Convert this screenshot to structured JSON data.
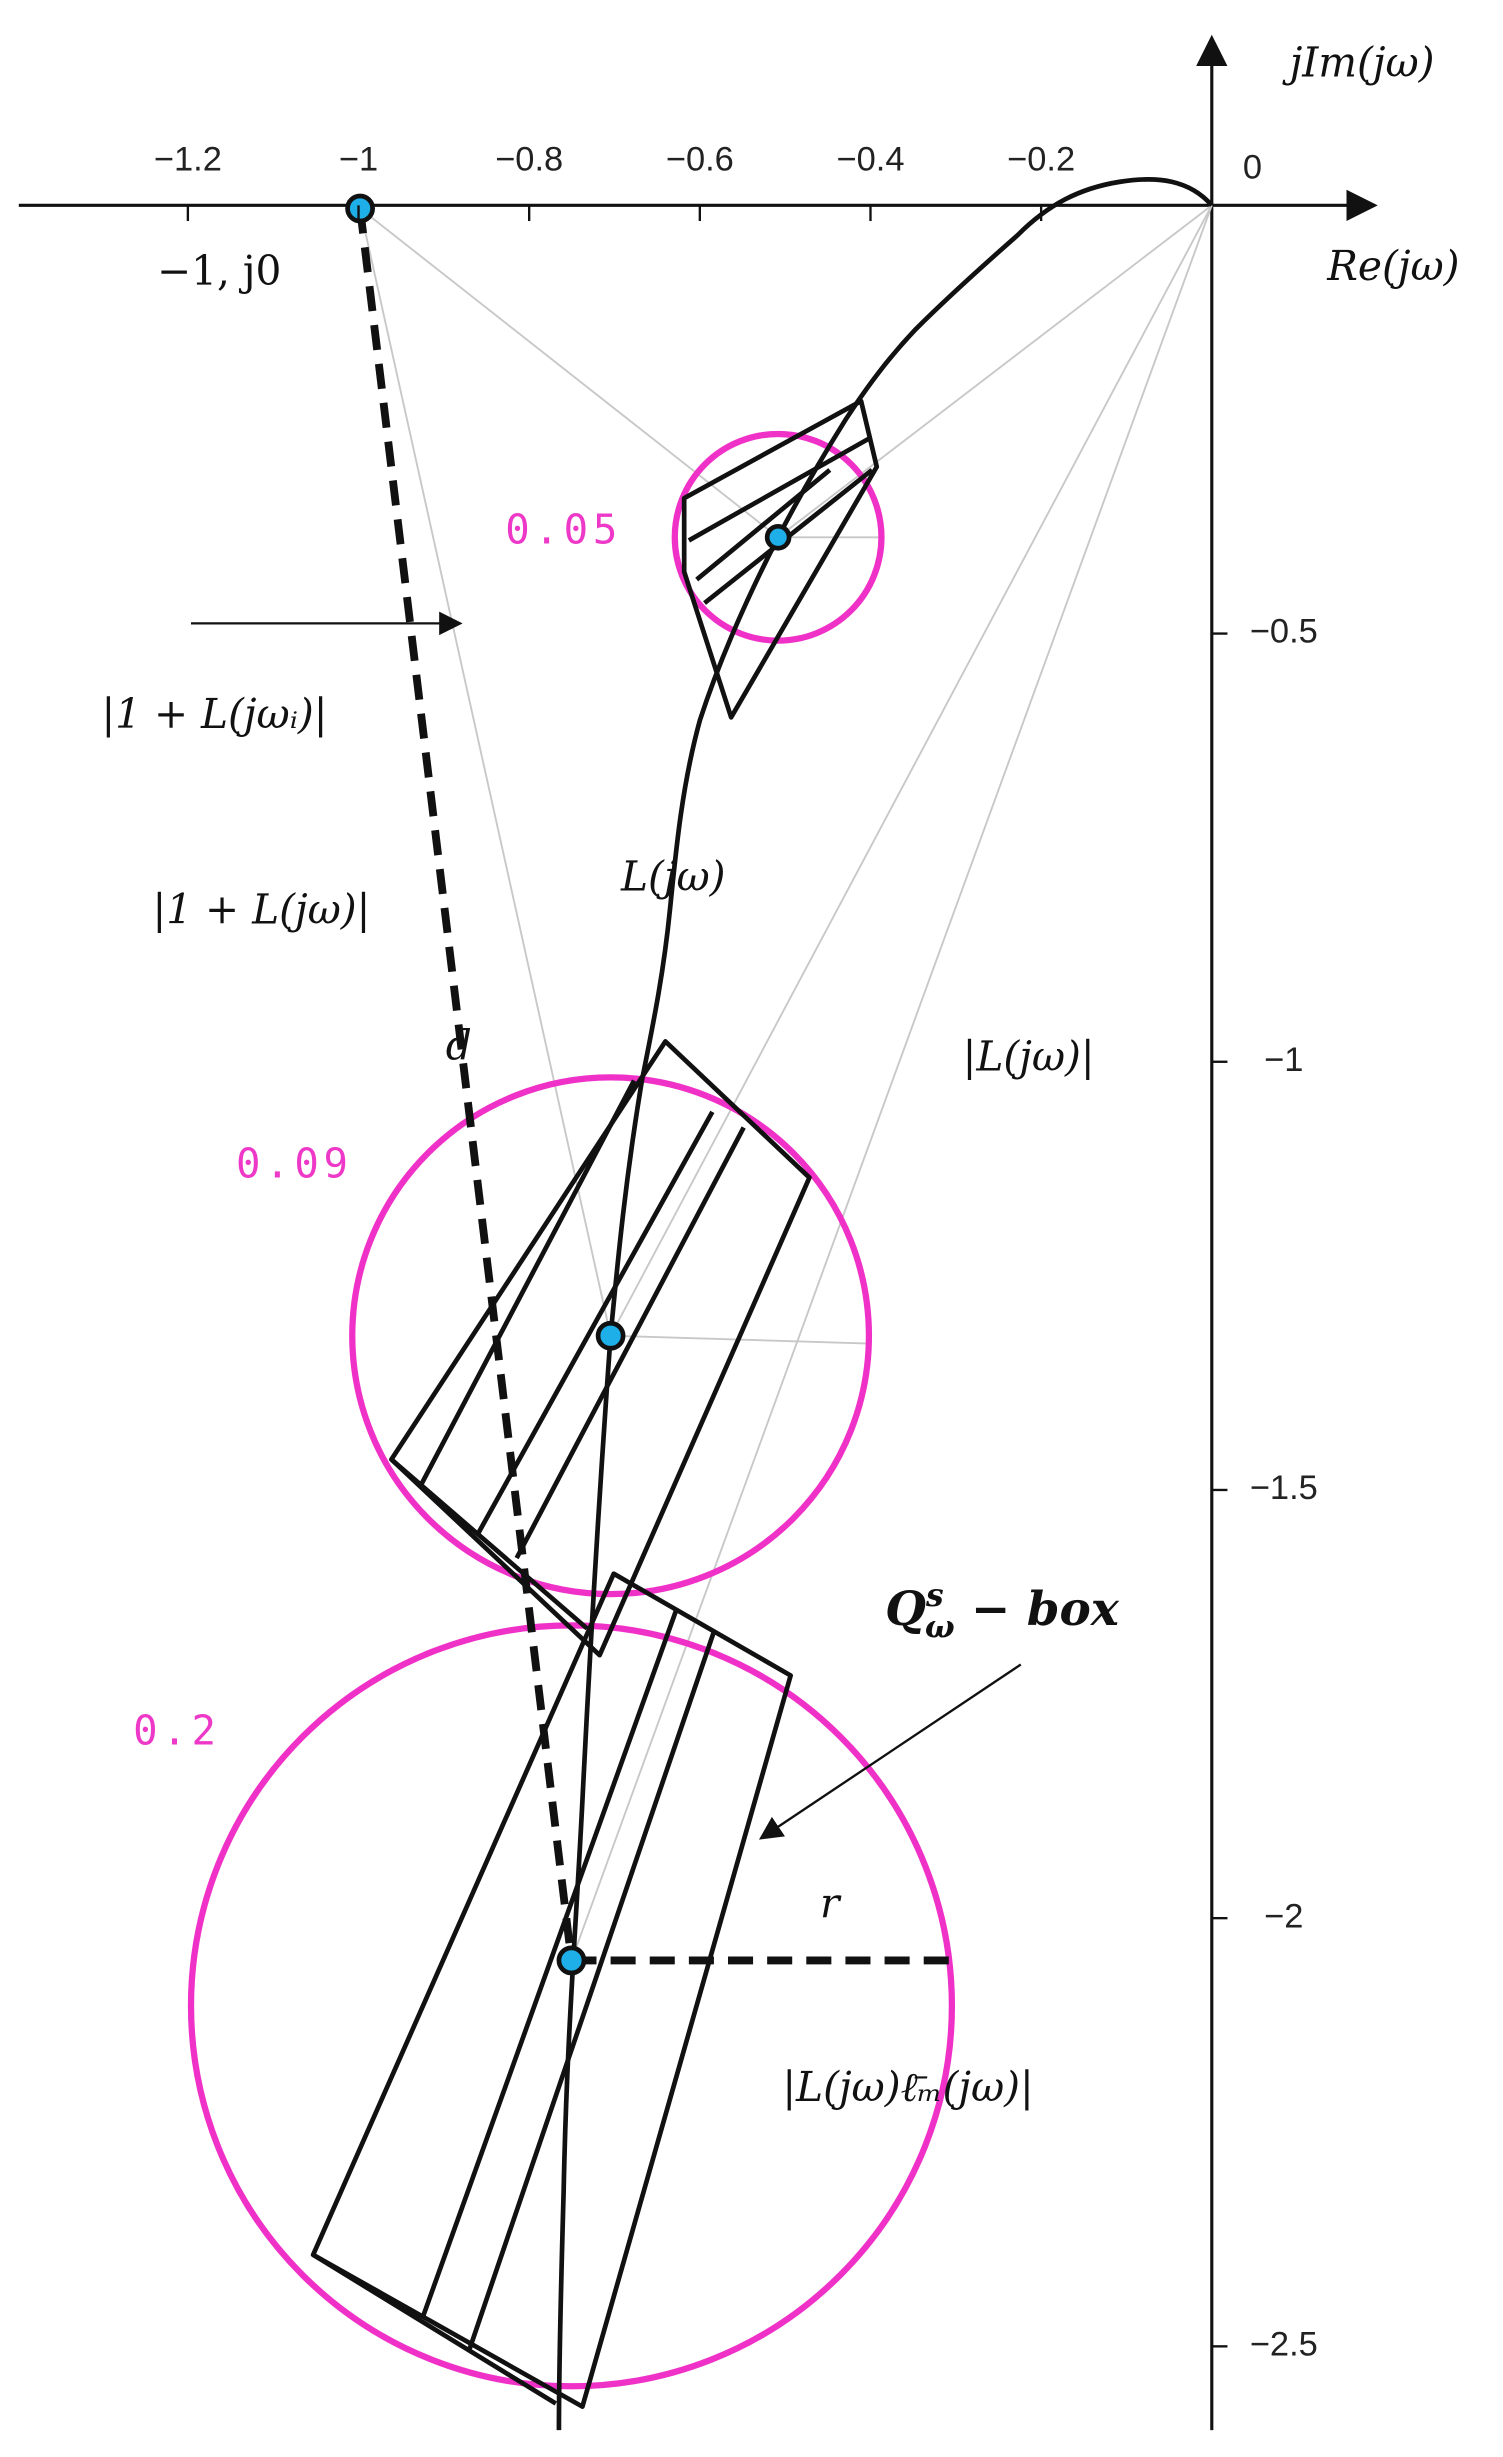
{
  "axes": {
    "x_label": "Re(jω)",
    "y_label": "jIm(jω)",
    "origin_label": "0",
    "x_ticks": [
      {
        "value": -1.2,
        "label": "−1.2"
      },
      {
        "value": -1,
        "label": "−1"
      },
      {
        "value": -0.8,
        "label": "−0.8"
      },
      {
        "value": -0.6,
        "label": "−0.6"
      },
      {
        "value": -0.4,
        "label": "−0.4"
      },
      {
        "value": -0.2,
        "label": "−0.2"
      }
    ],
    "y_ticks": [
      {
        "value": -0.5,
        "label": "−0.5"
      },
      {
        "value": -1,
        "label": "−1"
      },
      {
        "value": -1.5,
        "label": "−1.5"
      },
      {
        "value": -2,
        "label": "−2"
      },
      {
        "value": -2.5,
        "label": "−2.5"
      }
    ]
  },
  "circles": [
    {
      "label": "0.05"
    },
    {
      "label": "0.09"
    },
    {
      "label": "0.2"
    }
  ],
  "annotations": {
    "critical_point": "−1, j0",
    "one_plus_L_i": "|1 + L(jωᵢ)|",
    "one_plus_L": "|1 + L(jω)|",
    "d": "d",
    "L": "L(jω)",
    "abs_L": "|L(jω)|",
    "r": "r",
    "radius": "|L(jω)ℓ̄ₘ(jω)|",
    "q_box": {
      "base": "Q",
      "sup": "s",
      "sub": "ω",
      "rest": " − box"
    }
  }
}
